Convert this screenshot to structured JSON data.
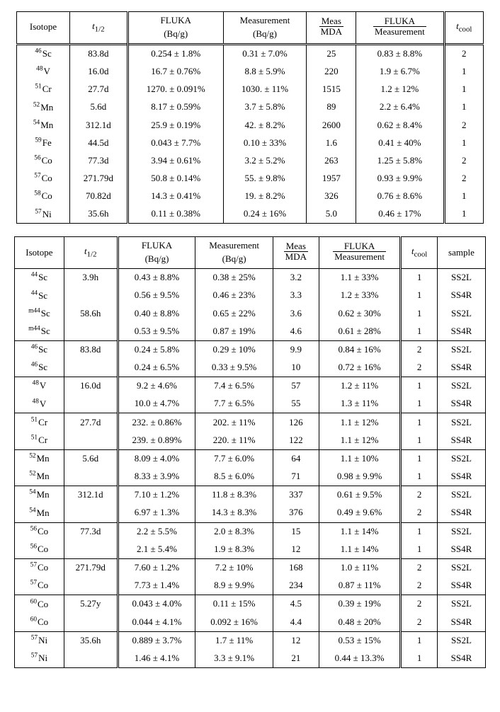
{
  "colors": {
    "text": "#000000",
    "background": "#ffffff",
    "rule": "#000000"
  },
  "fonts": {
    "family": "Palatino",
    "body_size_pt": 10
  },
  "table1": {
    "type": "table",
    "column_vrules": [
      "single",
      "double",
      "single",
      "single",
      "single",
      "double",
      "outer"
    ],
    "columns": [
      {
        "key": "isotope",
        "label": "Isotope",
        "align": "center"
      },
      {
        "key": "thalf",
        "label_html": "<i>t</i><sub>1/2</sub>",
        "align": "center"
      },
      {
        "key": "fluka",
        "label": "FLUKA",
        "sublabel": "(Bq/g)",
        "align": "center"
      },
      {
        "key": "meas",
        "label": "Measurement",
        "sublabel": "(Bq/g)",
        "align": "center"
      },
      {
        "key": "mm",
        "label_fraction": {
          "num": "Meas",
          "den": "MDA"
        },
        "align": "center"
      },
      {
        "key": "fm",
        "label_fraction": {
          "num": "FLUKA",
          "den": "Measurement"
        },
        "align": "center"
      },
      {
        "key": "tcool",
        "label_html": "<i>t</i><sub>cool</sub>",
        "align": "center"
      }
    ],
    "rows": [
      {
        "mass": "46",
        "sym": "Sc",
        "thalf": "83.8d",
        "fluka": "0.254 ± 1.8%",
        "meas": "0.31 ± 7.0%",
        "mm": "25",
        "fm": "0.83 ± 8.8%",
        "tcool": "2"
      },
      {
        "mass": "48",
        "sym": "V",
        "thalf": "16.0d",
        "fluka": "16.7 ± 0.76%",
        "meas": "8.8 ± 5.9%",
        "mm": "220",
        "fm": "1.9 ± 6.7%",
        "tcool": "1"
      },
      {
        "mass": "51",
        "sym": "Cr",
        "thalf": "27.7d",
        "fluka": "1270. ± 0.091%",
        "meas": "1030. ± 11%",
        "mm": "1515",
        "fm": "1.2 ± 12%",
        "tcool": "1"
      },
      {
        "mass": "52",
        "sym": "Mn",
        "thalf": "5.6d",
        "fluka": "8.17 ± 0.59%",
        "meas": "3.7 ± 5.8%",
        "mm": "89",
        "fm": "2.2 ± 6.4%",
        "tcool": "1"
      },
      {
        "mass": "54",
        "sym": "Mn",
        "thalf": "312.1d",
        "fluka": "25.9 ± 0.19%",
        "meas": "42. ± 8.2%",
        "mm": "2600",
        "fm": "0.62 ± 8.4%",
        "tcool": "2"
      },
      {
        "mass": "59",
        "sym": "Fe",
        "thalf": "44.5d",
        "fluka": "0.043 ± 7.7%",
        "meas": "0.10 ± 33%",
        "mm": "1.6",
        "fm": "0.41 ± 40%",
        "tcool": "1"
      },
      {
        "mass": "56",
        "sym": "Co",
        "thalf": "77.3d",
        "fluka": "3.94 ± 0.61%",
        "meas": "3.2 ± 5.2%",
        "mm": "263",
        "fm": "1.25 ± 5.8%",
        "tcool": "2"
      },
      {
        "mass": "57",
        "sym": "Co",
        "thalf": "271.79d",
        "fluka": "50.8 ± 0.14%",
        "meas": "55. ± 9.8%",
        "mm": "1957",
        "fm": "0.93 ± 9.9%",
        "tcool": "2"
      },
      {
        "mass": "58",
        "sym": "Co",
        "thalf": "70.82d",
        "fluka": "14.3 ± 0.41%",
        "meas": "19. ± 8.2%",
        "mm": "326",
        "fm": "0.76 ± 8.6%",
        "tcool": "1"
      },
      {
        "mass": "57",
        "sym": "Ni",
        "thalf": "35.6h",
        "fluka": "0.11 ± 0.38%",
        "meas": "0.24 ± 16%",
        "mm": "5.0",
        "fm": "0.46 ± 17%",
        "tcool": "1"
      }
    ]
  },
  "table2": {
    "type": "table",
    "column_vrules": [
      "single",
      "double",
      "single",
      "single",
      "single",
      "double",
      "single",
      "outer"
    ],
    "columns": [
      {
        "key": "isotope",
        "label": "Isotope"
      },
      {
        "key": "thalf",
        "label_html": "<i>t</i><sub>1/2</sub>"
      },
      {
        "key": "fluka",
        "label": "FLUKA",
        "sublabel": "(Bq/g)"
      },
      {
        "key": "meas",
        "label": "Measurement",
        "sublabel": "(Bq/g)"
      },
      {
        "key": "mm",
        "label_fraction": {
          "num": "Meas",
          "den": "MDA"
        }
      },
      {
        "key": "fm",
        "label_fraction": {
          "num": "FLUKA",
          "den": "Measurement"
        }
      },
      {
        "key": "tcool",
        "label_html": "<i>t</i><sub>cool</sub>"
      },
      {
        "key": "sample",
        "label": "sample"
      }
    ],
    "groups": [
      {
        "rows": [
          {
            "mass": "44",
            "sym": "Sc",
            "thalf": "3.9h",
            "fluka": "0.43 ± 8.8%",
            "meas": "0.38 ± 25%",
            "mm": "3.2",
            "fm": "1.1 ± 33%",
            "tcool": "1",
            "sample": "SS2L"
          },
          {
            "mass": "44",
            "sym": "Sc",
            "thalf": "",
            "fluka": "0.56 ± 9.5%",
            "meas": "0.46 ± 23%",
            "mm": "3.3",
            "fm": "1.2 ± 33%",
            "tcool": "1",
            "sample": "SS4R"
          },
          {
            "mass": "m44",
            "sym": "Sc",
            "thalf": "58.6h",
            "fluka": "0.40 ± 8.8%",
            "meas": "0.65 ± 22%",
            "mm": "3.6",
            "fm": "0.62 ± 30%",
            "tcool": "1",
            "sample": "SS2L"
          },
          {
            "mass": "m44",
            "sym": "Sc",
            "thalf": "",
            "fluka": "0.53 ± 9.5%",
            "meas": "0.87 ± 19%",
            "mm": "4.6",
            "fm": "0.61 ± 28%",
            "tcool": "1",
            "sample": "SS4R"
          }
        ]
      },
      {
        "rows": [
          {
            "mass": "46",
            "sym": "Sc",
            "thalf": "83.8d",
            "fluka": "0.24 ± 5.8%",
            "meas": "0.29 ± 10%",
            "mm": "9.9",
            "fm": "0.84 ± 16%",
            "tcool": "2",
            "sample": "SS2L"
          },
          {
            "mass": "46",
            "sym": "Sc",
            "thalf": "",
            "fluka": "0.24 ± 6.5%",
            "meas": "0.33 ± 9.5%",
            "mm": "10",
            "fm": "0.72 ± 16%",
            "tcool": "2",
            "sample": "SS4R"
          }
        ]
      },
      {
        "rows": [
          {
            "mass": "48",
            "sym": "V",
            "thalf": "16.0d",
            "fluka": "9.2 ± 4.6%",
            "meas": "7.4 ± 6.5%",
            "mm": "57",
            "fm": "1.2 ± 11%",
            "tcool": "1",
            "sample": "SS2L"
          },
          {
            "mass": "48",
            "sym": "V",
            "thalf": "",
            "fluka": "10.0 ± 4.7%",
            "meas": "7.7 ± 6.5%",
            "mm": "55",
            "fm": "1.3 ± 11%",
            "tcool": "1",
            "sample": "SS4R"
          }
        ]
      },
      {
        "rows": [
          {
            "mass": "51",
            "sym": "Cr",
            "thalf": "27.7d",
            "fluka": "232. ± 0.86%",
            "meas": "202. ± 11%",
            "mm": "126",
            "fm": "1.1 ± 12%",
            "tcool": "1",
            "sample": "SS2L"
          },
          {
            "mass": "51",
            "sym": "Cr",
            "thalf": "",
            "fluka": "239. ± 0.89%",
            "meas": "220. ± 11%",
            "mm": "122",
            "fm": "1.1 ± 12%",
            "tcool": "1",
            "sample": "SS4R"
          }
        ]
      },
      {
        "rows": [
          {
            "mass": "52",
            "sym": "Mn",
            "thalf": "5.6d",
            "fluka": "8.09 ± 4.0%",
            "meas": "7.7 ± 6.0%",
            "mm": "64",
            "fm": "1.1 ± 10%",
            "tcool": "1",
            "sample": "SS2L"
          },
          {
            "mass": "52",
            "sym": "Mn",
            "thalf": "",
            "fluka": "8.33 ± 3.9%",
            "meas": "8.5 ± 6.0%",
            "mm": "71",
            "fm": "0.98 ± 9.9%",
            "tcool": "1",
            "sample": "SS4R"
          }
        ]
      },
      {
        "rows": [
          {
            "mass": "54",
            "sym": "Mn",
            "thalf": "312.1d",
            "fluka": "7.10 ± 1.2%",
            "meas": "11.8 ± 8.3%",
            "mm": "337",
            "fm": "0.61 ± 9.5%",
            "tcool": "2",
            "sample": "SS2L"
          },
          {
            "mass": "54",
            "sym": "Mn",
            "thalf": "",
            "fluka": "6.97 ± 1.3%",
            "meas": "14.3 ± 8.3%",
            "mm": "376",
            "fm": "0.49 ± 9.6%",
            "tcool": "2",
            "sample": "SS4R"
          }
        ]
      },
      {
        "rows": [
          {
            "mass": "56",
            "sym": "Co",
            "thalf": "77.3d",
            "fluka": "2.2 ± 5.5%",
            "meas": "2.0 ± 8.3%",
            "mm": "15",
            "fm": "1.1 ± 14%",
            "tcool": "1",
            "sample": "SS2L"
          },
          {
            "mass": "56",
            "sym": "Co",
            "thalf": "",
            "fluka": "2.1 ± 5.4%",
            "meas": "1.9 ± 8.3%",
            "mm": "12",
            "fm": "1.1 ± 14%",
            "tcool": "1",
            "sample": "SS4R"
          }
        ]
      },
      {
        "rows": [
          {
            "mass": "57",
            "sym": "Co",
            "thalf": "271.79d",
            "fluka": "7.60 ± 1.2%",
            "meas": "7.2 ± 10%",
            "mm": "168",
            "fm": "1.0 ± 11%",
            "tcool": "2",
            "sample": "SS2L"
          },
          {
            "mass": "57",
            "sym": "Co",
            "thalf": "",
            "fluka": "7.73 ± 1.4%",
            "meas": "8.9 ± 9.9%",
            "mm": "234",
            "fm": "0.87 ± 11%",
            "tcool": "2",
            "sample": "SS4R"
          }
        ]
      },
      {
        "rows": [
          {
            "mass": "60",
            "sym": "Co",
            "thalf": "5.27y",
            "fluka": "0.043 ± 4.0%",
            "meas": "0.11 ± 15%",
            "mm": "4.5",
            "fm": "0.39 ± 19%",
            "tcool": "2",
            "sample": "SS2L"
          },
          {
            "mass": "60",
            "sym": "Co",
            "thalf": "",
            "fluka": "0.044 ± 4.1%",
            "meas": "0.092 ± 16%",
            "mm": "4.4",
            "fm": "0.48 ± 20%",
            "tcool": "2",
            "sample": "SS4R"
          }
        ]
      },
      {
        "rows": [
          {
            "mass": "57",
            "sym": "Ni",
            "thalf": "35.6h",
            "fluka": "0.889 ± 3.7%",
            "meas": "1.7 ± 11%",
            "mm": "12",
            "fm": "0.53 ± 15%",
            "tcool": "1",
            "sample": "SS2L"
          },
          {
            "mass": "57",
            "sym": "Ni",
            "thalf": "",
            "fluka": "1.46 ± 4.1%",
            "meas": "3.3 ± 9.1%",
            "mm": "21",
            "fm": "0.44 ± 13.3%",
            "tcool": "1",
            "sample": "SS4R"
          }
        ]
      }
    ]
  }
}
